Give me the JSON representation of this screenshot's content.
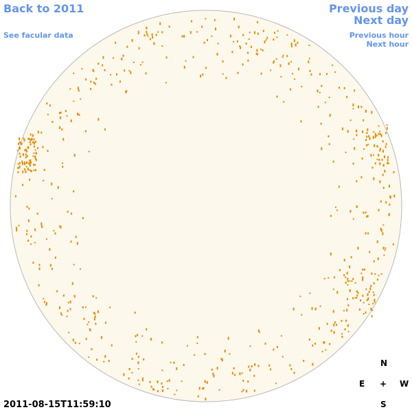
{
  "nav": {
    "back": "Back to 2011",
    "facular": "See facular data",
    "previous_day": "Previous day",
    "next_day": "Next day",
    "previous_hour": "Previous hour",
    "next_hour": "Next hour"
  },
  "compass": {
    "north": "N",
    "east": "E",
    "center": "+",
    "west": "W",
    "south": "S"
  },
  "timestamp": "2011-08-15T11:59:10"
}
